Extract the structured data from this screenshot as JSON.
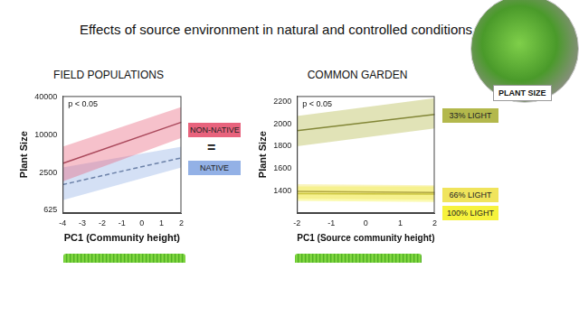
{
  "title": "Effects of source environment in natural and controlled conditions",
  "image_label": "PLANT SIZE",
  "chart_data": [
    {
      "type": "line",
      "title": "FIELD POPULATIONS",
      "x_label": "PC1 (Community height)",
      "y_label": "Plant Size",
      "annotations": [
        "p < 0.05",
        "="
      ],
      "log": "y",
      "grid": false,
      "xlim": [
        -4,
        2
      ],
      "xticks": [
        -4,
        -3,
        -2,
        -1,
        0,
        1,
        2
      ],
      "ylim": [
        560,
        42000
      ],
      "yticks": [
        625,
        2500,
        10000,
        40000
      ],
      "x": [
        -4,
        2
      ],
      "series": [
        {
          "name": "NON-NATIVE",
          "color": "#e8637d",
          "line_style": "solid",
          "values": [
            3500,
            16000
          ],
          "lower": [
            1800,
            9000
          ],
          "upper": [
            6500,
            28000
          ]
        },
        {
          "name": "NATIVE",
          "color": "#93b1e6",
          "line_style": "dashed",
          "values": [
            1600,
            4300
          ],
          "lower": [
            900,
            3000
          ],
          "upper": [
            3000,
            6500
          ]
        }
      ]
    },
    {
      "type": "line",
      "title": "COMMON GARDEN",
      "x_label": "PC1 (Source community height)",
      "y_label": "Plant Size",
      "annotations": [
        "p < 0.05"
      ],
      "grid": false,
      "xlim": [
        -2,
        2
      ],
      "xticks": [
        -2,
        -1,
        0,
        1,
        2
      ],
      "ylim": [
        1200,
        2250
      ],
      "yticks": [
        1400,
        1600,
        1800,
        2000,
        2200
      ],
      "x": [
        -2,
        2
      ],
      "series": [
        {
          "name": "33% LIGHT",
          "color": "#b3b84c",
          "line_style": "solid",
          "values": [
            1940,
            2085
          ],
          "lower": [
            1800,
            1960
          ],
          "upper": [
            2070,
            2230
          ]
        },
        {
          "name": "66% LIGHT",
          "color": "#f0e45c",
          "line_style": "solid",
          "values": [
            1395,
            1385
          ],
          "lower": [
            1330,
            1320
          ],
          "upper": [
            1460,
            1450
          ]
        },
        {
          "name": "100% LIGHT",
          "color": "#f6f23c",
          "line_style": "solid",
          "values": [
            1375,
            1370
          ],
          "lower": [
            1310,
            1300
          ],
          "upper": [
            1440,
            1440
          ]
        }
      ]
    }
  ]
}
